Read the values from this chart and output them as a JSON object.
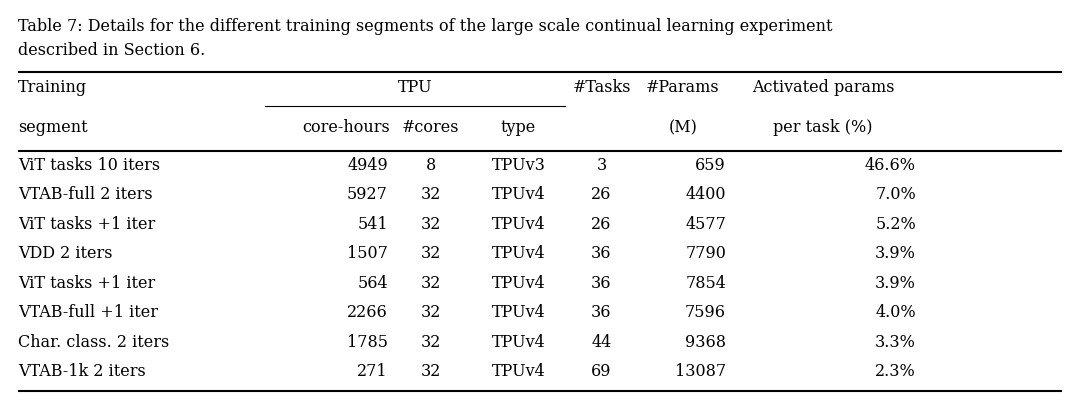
{
  "caption_line1": "Table 7: Details for the different training segments of the large scale continual learning experiment",
  "caption_line2": "described in Section 6.",
  "col_header_row1": [
    "Training",
    "TPU",
    "#Tasks",
    "#Params",
    "Activated params"
  ],
  "col_header_row2": [
    "segment",
    "core-hours",
    "#cores",
    "type",
    "",
    "(M)",
    "per task (%)"
  ],
  "rows": [
    [
      "ViT tasks 10 iters",
      "4949",
      "8",
      "TPUv3",
      "3",
      "659",
      "46.6%"
    ],
    [
      "VTAB-full 2 iters",
      "5927",
      "32",
      "TPUv4",
      "26",
      "4400",
      "7.0%"
    ],
    [
      "ViT tasks +1 iter",
      "541",
      "32",
      "TPUv4",
      "26",
      "4577",
      "5.2%"
    ],
    [
      "VDD 2 iters",
      "1507",
      "32",
      "TPUv4",
      "36",
      "7790",
      "3.9%"
    ],
    [
      "ViT tasks +1 iter",
      "564",
      "32",
      "TPUv4",
      "36",
      "7854",
      "3.9%"
    ],
    [
      "VTAB-full +1 iter",
      "2266",
      "32",
      "TPUv4",
      "36",
      "7596",
      "4.0%"
    ],
    [
      "Char. class. 2 iters",
      "1785",
      "32",
      "TPUv4",
      "44",
      "9368",
      "3.3%"
    ],
    [
      "VTAB-1k 2 iters",
      "271",
      "32",
      "TPUv4",
      "69",
      "13087",
      "2.3%"
    ]
  ],
  "background_color": "#ffffff",
  "text_color": "#000000",
  "figure_width": 10.8,
  "figure_height": 4.18,
  "dpi": 100
}
